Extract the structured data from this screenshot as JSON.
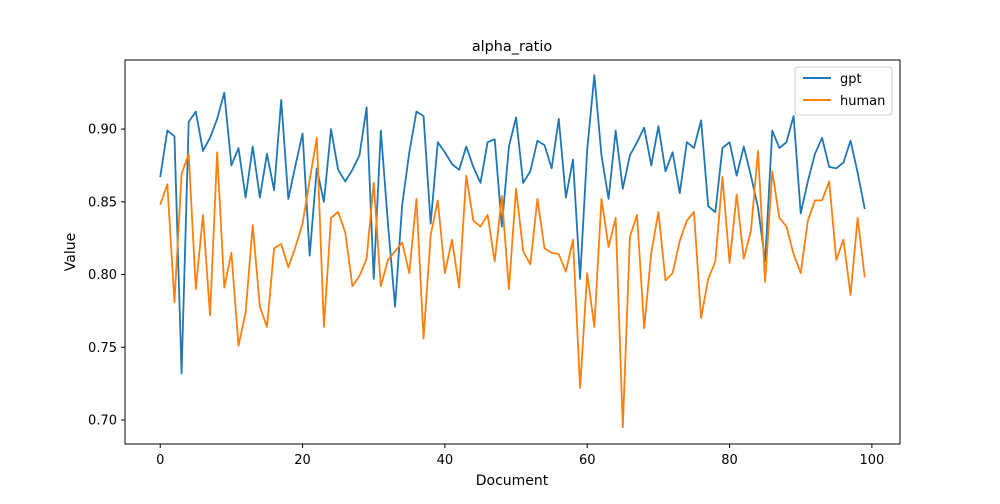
{
  "chart_data": {
    "type": "line",
    "title": "alpha_ratio",
    "xlabel": "Document",
    "ylabel": "Value",
    "xlim": [
      -4.95,
      103.95
    ],
    "ylim": [
      0.6835,
      0.9475
    ],
    "xticks": [
      0,
      20,
      40,
      60,
      80,
      100
    ],
    "yticks": [
      0.7,
      0.75,
      0.8,
      0.85,
      0.9
    ],
    "xtick_labels": [
      "0",
      "20",
      "40",
      "60",
      "80",
      "100"
    ],
    "ytick_labels": [
      "0.70",
      "0.75",
      "0.80",
      "0.85",
      "0.90"
    ],
    "grid": false,
    "legend_position": "upper right",
    "series": [
      {
        "name": "gpt",
        "color": "#1f77b4",
        "values": [
          0.867,
          0.899,
          0.895,
          0.732,
          0.905,
          0.912,
          0.885,
          0.894,
          0.907,
          0.925,
          0.875,
          0.887,
          0.853,
          0.888,
          0.853,
          0.883,
          0.858,
          0.92,
          0.852,
          0.875,
          0.897,
          0.813,
          0.873,
          0.85,
          0.9,
          0.872,
          0.864,
          0.872,
          0.882,
          0.915,
          0.797,
          0.899,
          0.835,
          0.778,
          0.848,
          0.884,
          0.912,
          0.909,
          0.835,
          0.891,
          0.884,
          0.876,
          0.872,
          0.888,
          0.874,
          0.863,
          0.891,
          0.893,
          0.833,
          0.888,
          0.908,
          0.863,
          0.871,
          0.892,
          0.889,
          0.873,
          0.907,
          0.853,
          0.879,
          0.797,
          0.886,
          0.937,
          0.882,
          0.852,
          0.899,
          0.859,
          0.882,
          0.891,
          0.901,
          0.875,
          0.902,
          0.871,
          0.884,
          0.856,
          0.891,
          0.887,
          0.906,
          0.847,
          0.843,
          0.887,
          0.891,
          0.868,
          0.888,
          0.868,
          0.846,
          0.809,
          0.899,
          0.887,
          0.891,
          0.909,
          0.842,
          0.864,
          0.883,
          0.894,
          0.874,
          0.873,
          0.877,
          0.892,
          0.87,
          0.845
        ]
      },
      {
        "name": "human",
        "color": "#ff7f0e",
        "values": [
          0.848,
          0.862,
          0.781,
          0.869,
          0.883,
          0.79,
          0.841,
          0.772,
          0.884,
          0.791,
          0.815,
          0.751,
          0.774,
          0.834,
          0.778,
          0.764,
          0.818,
          0.821,
          0.805,
          0.819,
          0.835,
          0.865,
          0.894,
          0.764,
          0.839,
          0.843,
          0.829,
          0.792,
          0.799,
          0.811,
          0.863,
          0.792,
          0.81,
          0.816,
          0.822,
          0.801,
          0.852,
          0.756,
          0.827,
          0.851,
          0.801,
          0.824,
          0.791,
          0.868,
          0.837,
          0.833,
          0.841,
          0.809,
          0.854,
          0.79,
          0.859,
          0.816,
          0.807,
          0.852,
          0.818,
          0.815,
          0.814,
          0.802,
          0.824,
          0.722,
          0.801,
          0.764,
          0.852,
          0.819,
          0.839,
          0.695,
          0.826,
          0.841,
          0.763,
          0.815,
          0.843,
          0.796,
          0.801,
          0.823,
          0.837,
          0.843,
          0.77,
          0.797,
          0.809,
          0.867,
          0.808,
          0.855,
          0.811,
          0.83,
          0.885,
          0.795,
          0.871,
          0.839,
          0.833,
          0.814,
          0.801,
          0.837,
          0.851,
          0.851,
          0.864,
          0.81,
          0.824,
          0.786,
          0.839,
          0.798
        ]
      }
    ]
  }
}
